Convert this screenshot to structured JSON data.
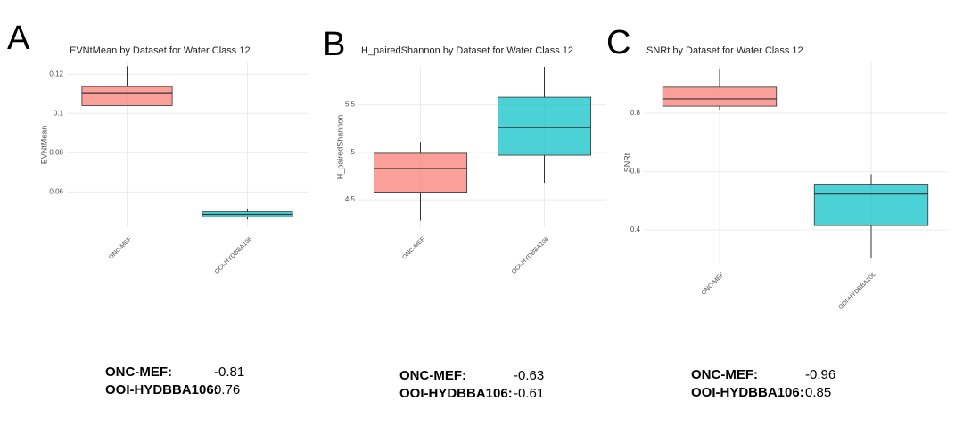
{
  "chart_data": [
    {
      "type": "box",
      "label": "A",
      "title": "EVNtMean by Dataset for Water Class 12",
      "ylabel": "EVNtMean",
      "categories": [
        "ONC-MEF",
        "OOI-HYDBBA106"
      ],
      "colors": [
        "#F8766D",
        "#00BFC4"
      ],
      "boxes": [
        {
          "whisker_low": 0.104,
          "q1": 0.104,
          "median": 0.1105,
          "q3": 0.1137,
          "whisker_high": 0.124
        },
        {
          "whisker_low": 0.046,
          "q1": 0.0473,
          "median": 0.0486,
          "q3": 0.0499,
          "whisker_high": 0.0513
        }
      ],
      "ylim": [
        0.042,
        0.126
      ],
      "yticks": [
        0.06,
        0.08,
        0.1,
        0.12
      ],
      "grid": true,
      "annotations": [
        {
          "label": "ONC-MEF:",
          "value": -0.81
        },
        {
          "label": "OOI-HYDBBA106:",
          "value": 0.76
        }
      ]
    },
    {
      "type": "box",
      "label": "B",
      "title": "H_pairedShannon by Dataset for Water Class 12",
      "ylabel": "H_pairedShannon",
      "categories": [
        "ONC-MEF",
        "OOI-HYDBBA106"
      ],
      "colors": [
        "#F8766D",
        "#00BFC4"
      ],
      "boxes": [
        {
          "whisker_low": 4.28,
          "q1": 4.58,
          "median": 4.83,
          "q3": 4.99,
          "whisker_high": 5.11
        },
        {
          "whisker_low": 4.68,
          "q1": 4.97,
          "median": 5.26,
          "q3": 5.58,
          "whisker_high": 5.9
        }
      ],
      "ylim": [
        4.21,
        5.9
      ],
      "yticks": [
        4.5,
        5.0,
        5.5
      ],
      "grid": true,
      "annotations": [
        {
          "label": "ONC-MEF:",
          "value": -0.63
        },
        {
          "label": "OOI-HYDBBA106:",
          "value": -0.61
        }
      ]
    },
    {
      "type": "box",
      "label": "C",
      "title": "SNRt by Dataset for Water Class 12",
      "ylabel": "SNRt",
      "categories": [
        "ONC-MEF",
        "OOI-HYDBBA106"
      ],
      "colors": [
        "#F8766D",
        "#00BFC4"
      ],
      "boxes": [
        {
          "whisker_low": 0.812,
          "q1": 0.824,
          "median": 0.849,
          "q3": 0.889,
          "whisker_high": 0.953
        },
        {
          "whisker_low": 0.305,
          "q1": 0.415,
          "median": 0.523,
          "q3": 0.554,
          "whisker_high": 0.591
        }
      ],
      "ylim": [
        0.287,
        0.974
      ],
      "yticks": [
        0.4,
        0.6,
        0.8
      ],
      "grid": true,
      "annotations": [
        {
          "label": "ONC-MEF:",
          "value": -0.96
        },
        {
          "label": "OOI-HYDBBA106:",
          "value": 0.85
        }
      ]
    }
  ]
}
